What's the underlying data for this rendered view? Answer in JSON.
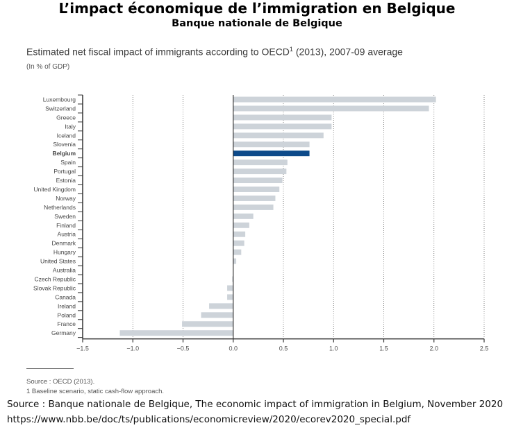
{
  "header": {
    "title": "L’impact économique de l’immigration en Belgique",
    "subtitle": "Banque nationale de Belgique"
  },
  "chart_data": {
    "type": "bar",
    "orientation": "horizontal",
    "title": "Estimated net fiscal impact of immigrants according to OECD",
    "title_superscript": "1",
    "title_suffix": " (2013), 2007-09 average",
    "ylabel": "(In % of GDP)",
    "xlim": [
      -1.5,
      2.5
    ],
    "xticks": [
      "−1.5",
      "−1.0",
      "−0.5",
      "0.0",
      "0.5",
      "1.0",
      "1.5",
      "2.0",
      "2.5"
    ],
    "xtick_values": [
      -1.5,
      -1.0,
      -0.5,
      0,
      0.5,
      1.0,
      1.5,
      2.0,
      2.5
    ],
    "grid": "vertical dotted",
    "highlight": "Belgium",
    "colors": {
      "default": "#cdd3d9",
      "highlight": "#0d4a8a"
    },
    "categories": [
      "Luxembourg",
      "Switzerland",
      "Greece",
      "Italy",
      "Iceland",
      "Slovenia",
      "Belgium",
      "Spain",
      "Portugal",
      "Estonia",
      "United Kingdom",
      "Norway",
      "Netherlands",
      "Sweden",
      "Finland",
      "Austria",
      "Denmark",
      "Hungary",
      "United States",
      "Australia",
      "Czech Republic",
      "Slovak Republic",
      "Canada",
      "Ireland",
      "Poland",
      "France",
      "Germany"
    ],
    "values": [
      2.02,
      1.95,
      0.98,
      0.98,
      0.9,
      0.76,
      0.76,
      0.54,
      0.53,
      0.49,
      0.46,
      0.42,
      0.4,
      0.2,
      0.16,
      0.12,
      0.11,
      0.08,
      0.03,
      0.0,
      -0.01,
      -0.06,
      -0.06,
      -0.24,
      -0.32,
      -0.51,
      -1.13
    ]
  },
  "footnotes": {
    "source": "Source : OECD (2013).",
    "note": "1  Baseline scenario, static cash-flow approach."
  },
  "citation": {
    "line1": "Source : Banque nationale de Belgique, The economic impact of immigration in Belgium, November 2020",
    "line2": "https://www.nbb.be/doc/ts/publications/economicreview/2020/ecorev2020_special.pdf"
  }
}
